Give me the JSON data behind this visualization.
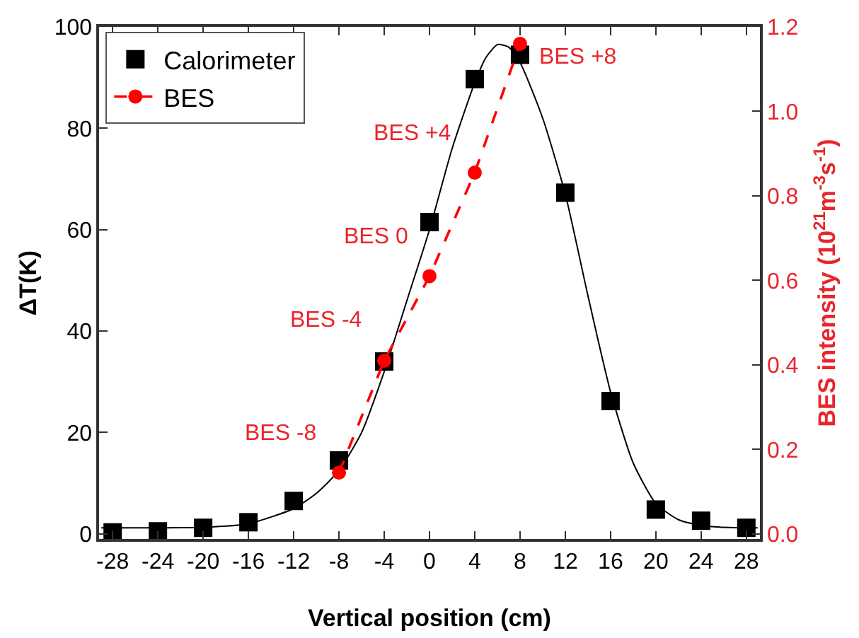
{
  "chart_data": {
    "type": "scatter",
    "xlabel": "Vertical position (cm)",
    "ylabel": "ΔT(K)",
    "y2label": "BES intensity (10$^{21}$m$^{-3}$s$^{-1}$)",
    "xlim": [
      -29.2,
      29.2
    ],
    "xticks": [
      -28,
      -24,
      -20,
      -16,
      -12,
      -8,
      -4,
      0,
      4,
      8,
      12,
      16,
      20,
      24,
      28
    ],
    "ylim": [
      -1,
      100
    ],
    "yticks": [
      0,
      20,
      40,
      60,
      80,
      100
    ],
    "y2lim": [
      -0.012,
      1.2
    ],
    "y2ticks": [
      {
        "value": 0,
        "label": "0.0"
      },
      0.2,
      0.4,
      0.6,
      0.8,
      {
        "value": 1,
        "label": "1.0"
      },
      1.2
    ],
    "grid": false,
    "legend": "top left",
    "series": [
      {
        "name": "Calorimeter",
        "marker": "square",
        "color": "#000000",
        "x": [
          -28,
          -24,
          -20,
          -16,
          -12,
          -8,
          -4,
          0,
          4,
          8,
          12,
          16,
          20,
          24,
          28
        ],
        "values": [
          0.3,
          0.5,
          1.2,
          2.3,
          6.5,
          14.5,
          34,
          61.5,
          89.7,
          94.5,
          67.3,
          26.2,
          4.8,
          2.6,
          1.2
        ]
      },
      {
        "type": "line",
        "marker": "none",
        "line_style": "solid",
        "color": "#000000",
        "x": [
          -29,
          -24,
          -20,
          -16,
          -12,
          -10,
          -8,
          -6,
          -4,
          -2,
          0,
          2,
          4,
          5,
          6,
          7,
          8,
          10,
          12,
          14,
          16,
          18,
          20,
          22,
          24,
          26,
          29
        ],
        "values": [
          1.2,
          1.2,
          1.3,
          2,
          5,
          8,
          12.5,
          20,
          32,
          46,
          60,
          76,
          89,
          94,
          96.5,
          96,
          93,
          82,
          67,
          47,
          28,
          14,
          6,
          2.8,
          1.7,
          1.3,
          1.2
        ]
      },
      {
        "name": "BES",
        "type": "line",
        "axis": "y2",
        "marker": "circle",
        "line_style": "dashed",
        "color": "#ff0000",
        "x": [
          -8,
          -4,
          0,
          4,
          8
        ],
        "values": [
          0.145,
          0.41,
          0.61,
          0.855,
          1.16
        ]
      }
    ],
    "annotations": [
      "BES -8",
      "BES -4",
      "BES 0",
      "BES +4",
      "BES +8"
    ]
  }
}
